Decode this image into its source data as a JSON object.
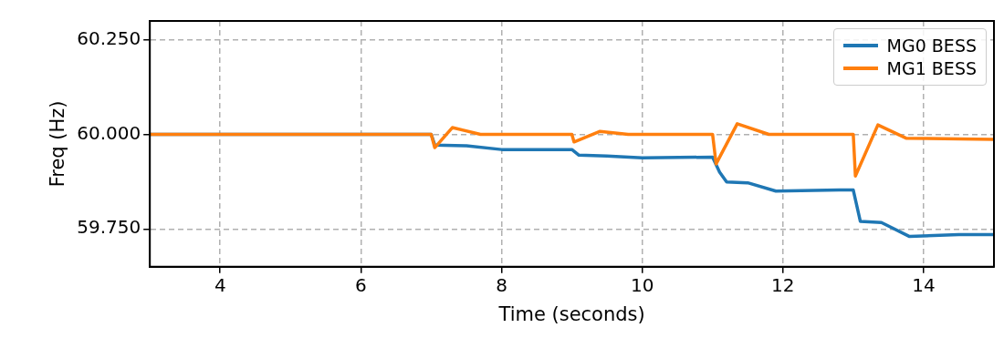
{
  "chart_data": {
    "type": "line",
    "xlabel": "Time (seconds)",
    "ylabel": "Freq (Hz)",
    "xlim": [
      3,
      15
    ],
    "ylim": [
      59.65,
      60.3
    ],
    "xticks": [
      4,
      6,
      8,
      10,
      12,
      14
    ],
    "yticks": [
      {
        "value": 59.75,
        "label": "59.750"
      },
      {
        "value": 60,
        "label": "60.000"
      },
      {
        "value": 60.25,
        "label": "60.250"
      }
    ],
    "grid": true,
    "legend": "top right",
    "line_style": "solid",
    "marker": "none",
    "series": [
      {
        "name": "MG0 BESS",
        "color": "#1f77b4",
        "x": [
          3,
          7.0,
          7.05,
          7.5,
          8,
          9,
          9.1,
          9.5,
          10,
          11,
          11.1,
          11.2,
          11.5,
          11.9,
          12.8,
          13.0,
          13.1,
          13.4,
          13.8,
          14.5,
          15
        ],
        "values": [
          60,
          60,
          59.972,
          59.97,
          59.96,
          59.96,
          59.945,
          59.943,
          59.938,
          59.94,
          59.9,
          59.874,
          59.872,
          59.85,
          59.853,
          59.853,
          59.77,
          59.767,
          59.73,
          59.735,
          59.735
        ]
      },
      {
        "name": "MG1 BESS",
        "color": "#ff7f0e",
        "x": [
          3,
          7.0,
          7.05,
          7.3,
          7.7,
          9.0,
          9.03,
          9.4,
          9.8,
          11.0,
          11.05,
          11.35,
          11.8,
          13.0,
          13.03,
          13.35,
          13.75,
          15
        ],
        "values": [
          60,
          60,
          59.965,
          60.018,
          60,
          60,
          59.98,
          60.008,
          60,
          60,
          59.922,
          60.028,
          60,
          60,
          59.89,
          60.025,
          59.99,
          59.987
        ]
      }
    ]
  }
}
